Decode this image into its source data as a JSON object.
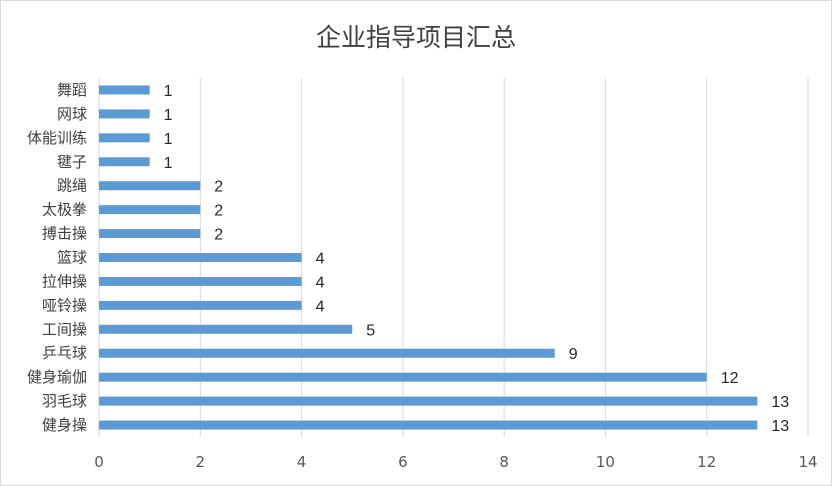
{
  "chart_data": {
    "type": "bar",
    "orientation": "horizontal",
    "title": "企业指导项目汇总",
    "categories": [
      "健身操",
      "羽毛球",
      "健身瑜伽",
      "乒乓球",
      "工间操",
      "哑铃操",
      "拉伸操",
      "篮球",
      "搏击操",
      "太极拳",
      "跳绳",
      "毽子",
      "体能训练",
      "网球",
      "舞蹈"
    ],
    "values": [
      13,
      13,
      12,
      9,
      5,
      4,
      4,
      4,
      2,
      2,
      2,
      1,
      1,
      1,
      1
    ],
    "xlim": [
      0,
      14
    ],
    "xticks": [
      0,
      2,
      4,
      6,
      8,
      10,
      12,
      14
    ],
    "grid": "vertical",
    "legend": "none",
    "bar_color": "#5b9bd5",
    "data_labels": true
  }
}
